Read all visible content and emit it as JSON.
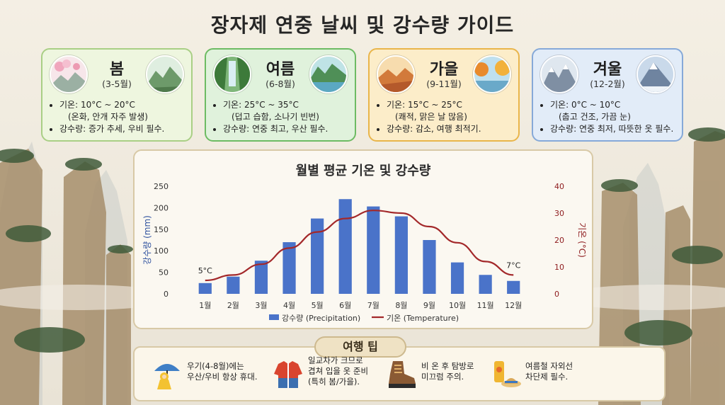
{
  "page": {
    "title": "장자제 연중 날씨 및 강수량 가이드"
  },
  "seasons": [
    {
      "name": "봄",
      "months": "(3-5월)",
      "temp": "기온: 10°C ~ 20°C",
      "temp_note": "(온화, 안개 자주 발생)",
      "rain": "강수량: 증가 추세, 우비 필수.",
      "bg": "#eef6df",
      "border": "#a9cf85"
    },
    {
      "name": "여름",
      "months": "(6-8월)",
      "temp": "기온: 25°C ~ 35°C",
      "temp_note": "(덥고 습함, 소나기 빈번)",
      "rain": "강수량: 연중 최고, 우산 필수.",
      "bg": "#e0f2dc",
      "border": "#6dbb63"
    },
    {
      "name": "가을",
      "months": "(9-11월)",
      "temp": "기온: 15°C ~ 25°C",
      "temp_note": "(쾌적, 맑은 날 많음)",
      "rain": "강수량: 감소, 여행 최적기.",
      "bg": "#fcedc9",
      "border": "#e9b54a"
    },
    {
      "name": "겨울",
      "months": "(12-2월)",
      "temp": "기온: 0°C ~ 10°C",
      "temp_note": "(춥고 건조, 가끔 눈)",
      "rain": "강수량: 연중 최저, 따뜻한 옷 필수.",
      "bg": "#e2ecf8",
      "border": "#86a9d8"
    }
  ],
  "chart_data": {
    "type": "bar",
    "title": "월별 평균 기온 및 강수량",
    "categories": [
      "1월",
      "2월",
      "3월",
      "4월",
      "5월",
      "6월",
      "7월",
      "8월",
      "9월",
      "10월",
      "11월",
      "12월"
    ],
    "series": [
      {
        "name": "강수량 (Precipitation)",
        "type": "bar",
        "axis": "left",
        "color": "#4a73c9",
        "values": [
          25,
          40,
          77,
          120,
          175,
          220,
          203,
          180,
          125,
          73,
          44,
          30
        ]
      },
      {
        "name": "기온 (Temperature)",
        "type": "line",
        "axis": "right",
        "color": "#a3282a",
        "values": [
          5,
          7,
          11,
          17,
          23,
          28,
          31,
          30,
          25,
          19,
          12,
          7
        ]
      }
    ],
    "ylabel": "강수량 (mm)",
    "y2label": "기온 (°C)",
    "ylim": [
      0,
      250
    ],
    "y2lim": [
      0,
      40
    ],
    "yticks": [
      "0",
      "50",
      "100",
      "150",
      "200",
      "250"
    ],
    "y2ticks": [
      "0",
      "10",
      "20",
      "30",
      "40"
    ],
    "annotations": [
      {
        "text": "5°C",
        "month": "1월"
      },
      {
        "text": "7°C",
        "month": "12월"
      }
    ],
    "legend_position": "bottom",
    "grid": false
  },
  "tips": {
    "title": "여행 팁",
    "items": [
      {
        "line1": "우기(4-8월)에는",
        "line2": "우산/우비 항상 휴대.",
        "line3": "",
        "icon": "umbrella-raincoat-icon"
      },
      {
        "line1": "일교차가 크므로",
        "line2": "겹쳐 입을 옷 준비",
        "line3": "(특히 봄/가을).",
        "icon": "jacket-icon"
      },
      {
        "line1": "비 온 후 탐방로",
        "line2": "미끄럼 주의.",
        "line3": "",
        "icon": "hiking-boot-icon"
      },
      {
        "line1": "여름철 자외선",
        "line2": "차단제 필수.",
        "line3": "",
        "icon": "sunscreen-hat-icon"
      }
    ]
  }
}
